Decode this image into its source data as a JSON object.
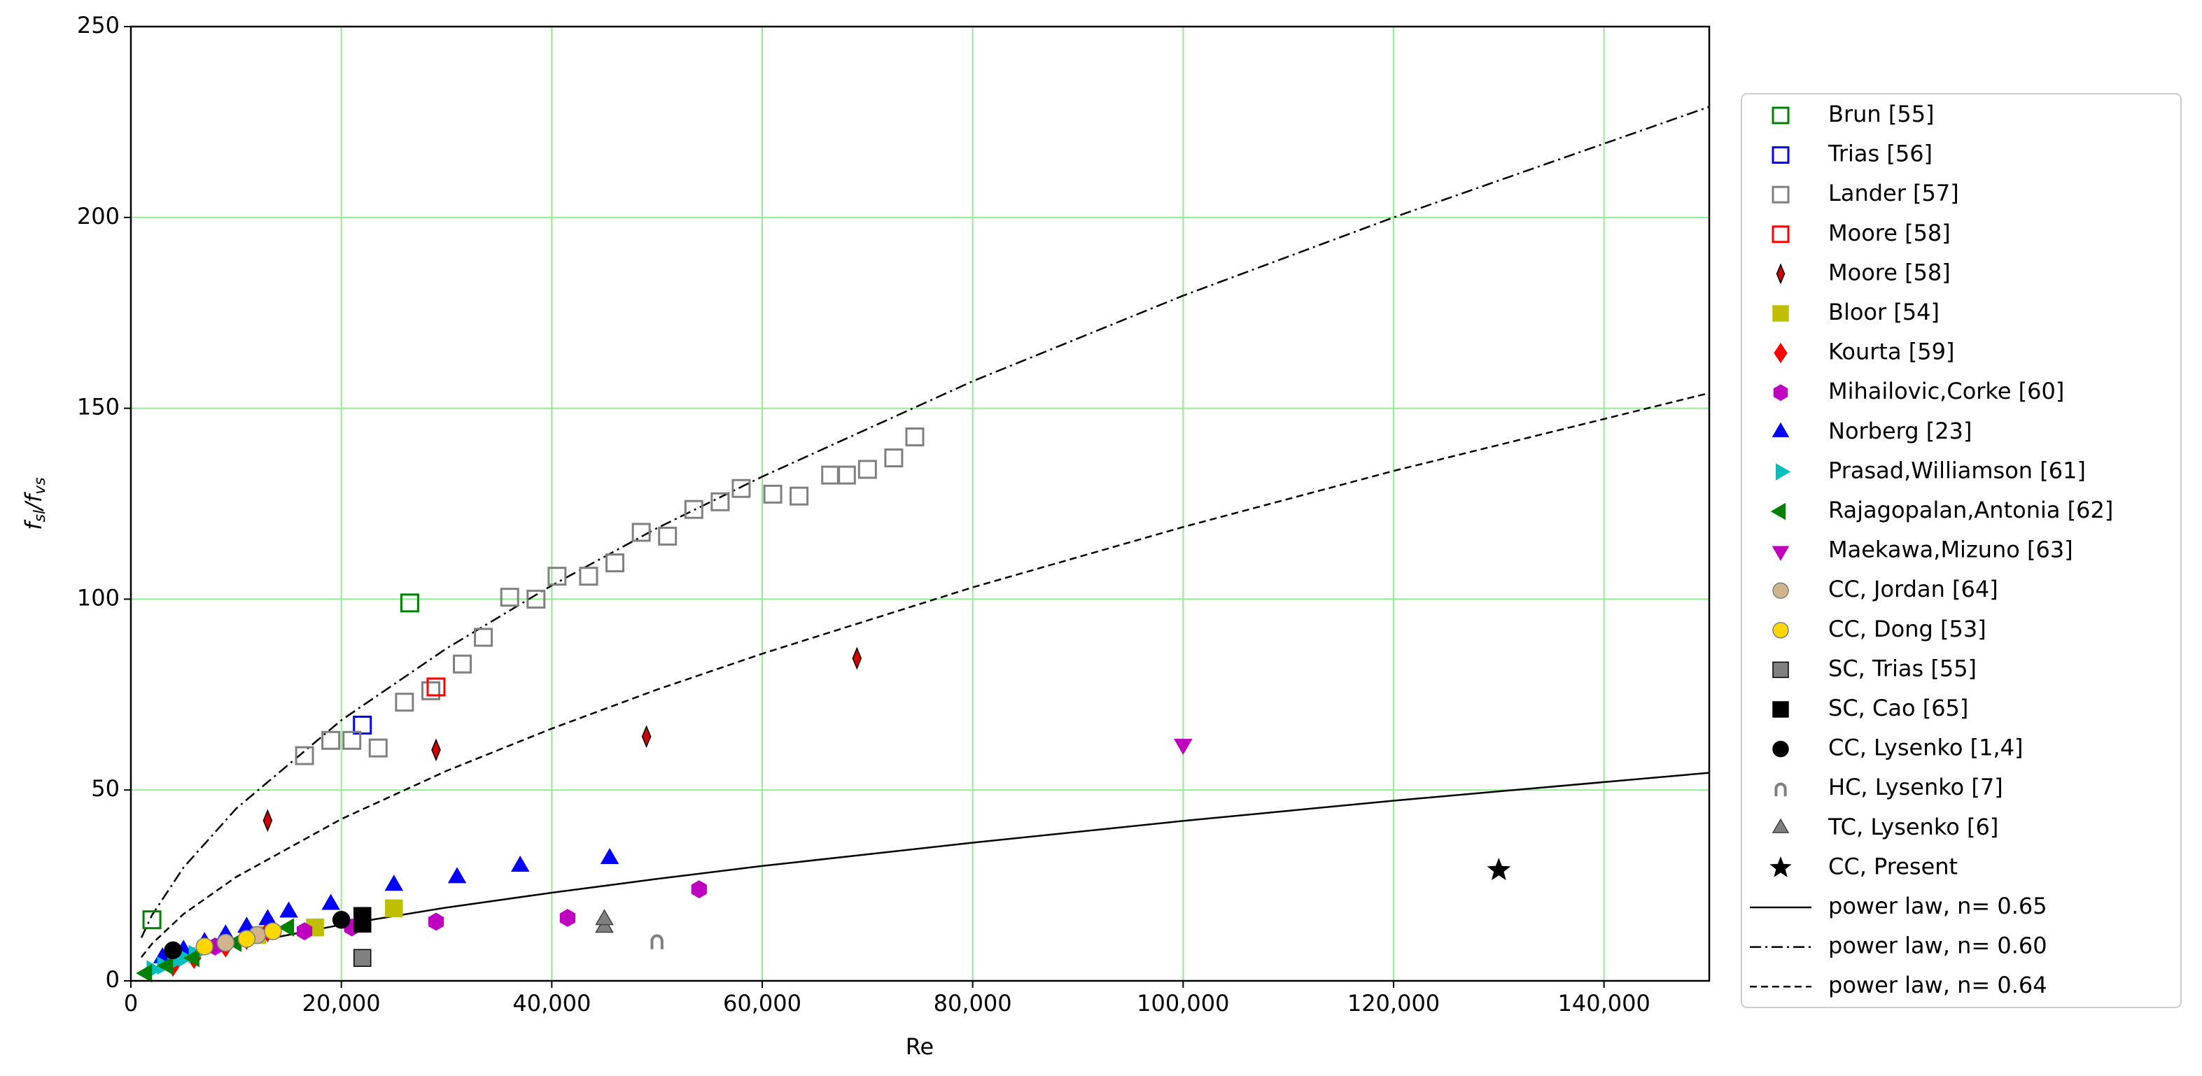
{
  "chart_data": {
    "type": "scatter",
    "xlabel": "Re",
    "ylabel": [
      "f",
      "sl",
      "/f",
      "vs"
    ],
    "xlim": [
      0,
      150000
    ],
    "ylim": [
      0,
      250
    ],
    "xticks": [
      0,
      {
        "value": 20000,
        "label": "20,000"
      },
      {
        "value": 40000,
        "label": "40,000"
      },
      {
        "value": 60000,
        "label": "60,000"
      },
      {
        "value": 80000,
        "label": "80,000"
      },
      {
        "value": 100000,
        "label": "100,000"
      },
      {
        "value": 120000,
        "label": "120,000"
      },
      {
        "value": 140000,
        "label": "140,000"
      }
    ],
    "yticks": [
      0,
      50,
      100,
      150,
      200,
      250
    ],
    "grid": true,
    "grid_color": "#90ee90",
    "legend": "outside-right",
    "series": [
      {
        "name": "Brun [55]",
        "marker": "square",
        "filled": false,
        "color": "#008000",
        "x": [
          2000,
          26500
        ],
        "values": [
          16,
          99
        ]
      },
      {
        "name": "Trias [56]",
        "marker": "square",
        "filled": false,
        "color": "#0000ff",
        "x": [
          22000
        ],
        "values": [
          67
        ]
      },
      {
        "name": "Lander [57]",
        "marker": "square",
        "filled": false,
        "color": "#808080",
        "x": [
          16500,
          19000,
          21000,
          23500,
          26000,
          28500,
          31500,
          33500,
          36000,
          38500,
          40500,
          43500,
          46000,
          48500,
          51000,
          53500,
          56000,
          58000,
          61000,
          63500,
          66500,
          68000,
          70000,
          72500,
          74500
        ],
        "values": [
          59,
          63,
          63,
          61,
          73,
          76,
          83,
          90,
          100.5,
          100,
          106,
          106,
          109.5,
          117.5,
          116.5,
          123.5,
          125.5,
          129,
          127.5,
          127,
          132.5,
          132.5,
          134,
          137,
          142.5
        ]
      },
      {
        "name": "Moore [58]",
        "marker": "square",
        "filled": false,
        "color": "#ff0000",
        "x": [
          29000
        ],
        "values": [
          77
        ]
      },
      {
        "name": "Moore [58]",
        "marker": "thin-diamond",
        "filled": true,
        "color": "#d00000",
        "edgecolor": "#000000",
        "x": [
          13000,
          29000,
          49000,
          69000
        ],
        "values": [
          42,
          60.5,
          64,
          84.5
        ]
      },
      {
        "name": "Bloor [54]",
        "marker": "square",
        "filled": true,
        "color": "#bfbf00",
        "x": [
          12000,
          17500,
          25000
        ],
        "values": [
          12,
          14,
          19
        ]
      },
      {
        "name": "Kourta [59]",
        "marker": "diamond",
        "filled": true,
        "color": "#ff0000",
        "x": [
          4000,
          6000,
          9000,
          11000,
          13000
        ],
        "values": [
          4,
          6,
          9,
          11,
          13
        ]
      },
      {
        "name": "Mihailovic,Corke [60]",
        "marker": "hexagon",
        "filled": true,
        "color": "#c000c0",
        "x": [
          8000,
          16500,
          21000,
          29000,
          41500,
          54000
        ],
        "values": [
          9,
          13,
          14,
          15.5,
          16.5,
          24
        ]
      },
      {
        "name": "Norberg [23]",
        "marker": "triangle-up",
        "filled": true,
        "color": "#0000ff",
        "x": [
          3000,
          5000,
          7000,
          9000,
          11000,
          13000,
          15000,
          19000,
          25000,
          31000,
          37000,
          45500
        ],
        "values": [
          6,
          8,
          10,
          12,
          14,
          16,
          18,
          20,
          25,
          27,
          30,
          32
        ]
      },
      {
        "name": "Prasad,Williamson [61]",
        "marker": "triangle-right",
        "filled": true,
        "color": "#00bfbf",
        "x": [
          2000,
          3000,
          4000,
          5000,
          6000
        ],
        "values": [
          3,
          4,
          5,
          6,
          7
        ]
      },
      {
        "name": "Rajagopalan,Antonia [62]",
        "marker": "triangle-left",
        "filled": true,
        "color": "#008000",
        "x": [
          1500,
          3500,
          6000,
          10000,
          15000
        ],
        "values": [
          2,
          4,
          6,
          10,
          14
        ]
      },
      {
        "name": "Maekawa,Mizuno [63]",
        "marker": "triangle-down",
        "filled": true,
        "color": "#bf00bf",
        "x": [
          100000
        ],
        "values": [
          62
        ]
      },
      {
        "name": "CC, Jordan [64]",
        "marker": "circle",
        "filled": true,
        "color": "#d2b48c",
        "edgecolor": "#808080",
        "x": [
          9000,
          12000
        ],
        "values": [
          10,
          12
        ]
      },
      {
        "name": "CC, Dong [53]",
        "marker": "circle",
        "filled": true,
        "color": "#ffd700",
        "edgecolor": "#808080",
        "x": [
          7000,
          11000,
          13500
        ],
        "values": [
          9,
          11,
          13
        ]
      },
      {
        "name": "SC, Trias [55]",
        "marker": "square",
        "filled": true,
        "color": "#808080",
        "edgecolor": "#000000",
        "x": [
          22000,
          22000
        ],
        "values": [
          6,
          15
        ]
      },
      {
        "name": "SC, Cao [65]",
        "marker": "square",
        "filled": true,
        "color": "#000000",
        "x": [
          22000,
          22000
        ],
        "values": [
          15,
          17
        ]
      },
      {
        "name": "CC, Lysenko [1,4]",
        "marker": "circle",
        "filled": true,
        "color": "#000000",
        "x": [
          4000,
          20000
        ],
        "values": [
          8,
          16
        ]
      },
      {
        "name": "HC, Lysenko [7]",
        "marker": "cap",
        "filled": false,
        "color": "#808080",
        "x": [
          50000
        ],
        "values": [
          10.5
        ]
      },
      {
        "name": "TC, Lysenko [6]",
        "marker": "triangle-up",
        "filled": true,
        "color": "#808080",
        "edgecolor": "#404040",
        "x": [
          45000,
          45000
        ],
        "values": [
          14,
          16
        ]
      },
      {
        "name": "CC, Present",
        "marker": "star",
        "filled": true,
        "color": "#000000",
        "x": [
          130000
        ],
        "values": [
          29
        ]
      },
      {
        "name": "power law, n= 0.65",
        "linestyle": "solid",
        "color": "#000000",
        "x": [
          1000,
          5000,
          10000,
          20000,
          30000,
          40000,
          50000,
          60000,
          80000,
          100000,
          120000,
          150000
        ],
        "values": [
          2.1,
          6.0,
          9.4,
          14.7,
          19.2,
          23.1,
          26.7,
          30.1,
          36.2,
          41.9,
          47.2,
          54.5
        ]
      },
      {
        "name": "power law, n= 0.60",
        "linestyle": "dashdot",
        "color": "#000000",
        "x": [
          1000,
          2000,
          5000,
          10000,
          20000,
          30000,
          40000,
          50000,
          60000,
          80000,
          100000,
          120000,
          150000
        ],
        "values": [
          11.3,
          17.2,
          29.7,
          45.1,
          68.3,
          87.1,
          103.6,
          118.6,
          132.1,
          157.1,
          179.5,
          200.0,
          229.0
        ]
      },
      {
        "name": "power law, n= 0.64",
        "linestyle": "dashed",
        "color": "#000000",
        "x": [
          1000,
          2000,
          5000,
          10000,
          20000,
          30000,
          40000,
          50000,
          60000,
          80000,
          100000,
          120000,
          150000
        ],
        "values": [
          6.2,
          9.7,
          17.5,
          27.2,
          42.4,
          55.0,
          66.1,
          76.3,
          85.7,
          103.1,
          118.9,
          133.6,
          154.0
        ]
      }
    ]
  }
}
